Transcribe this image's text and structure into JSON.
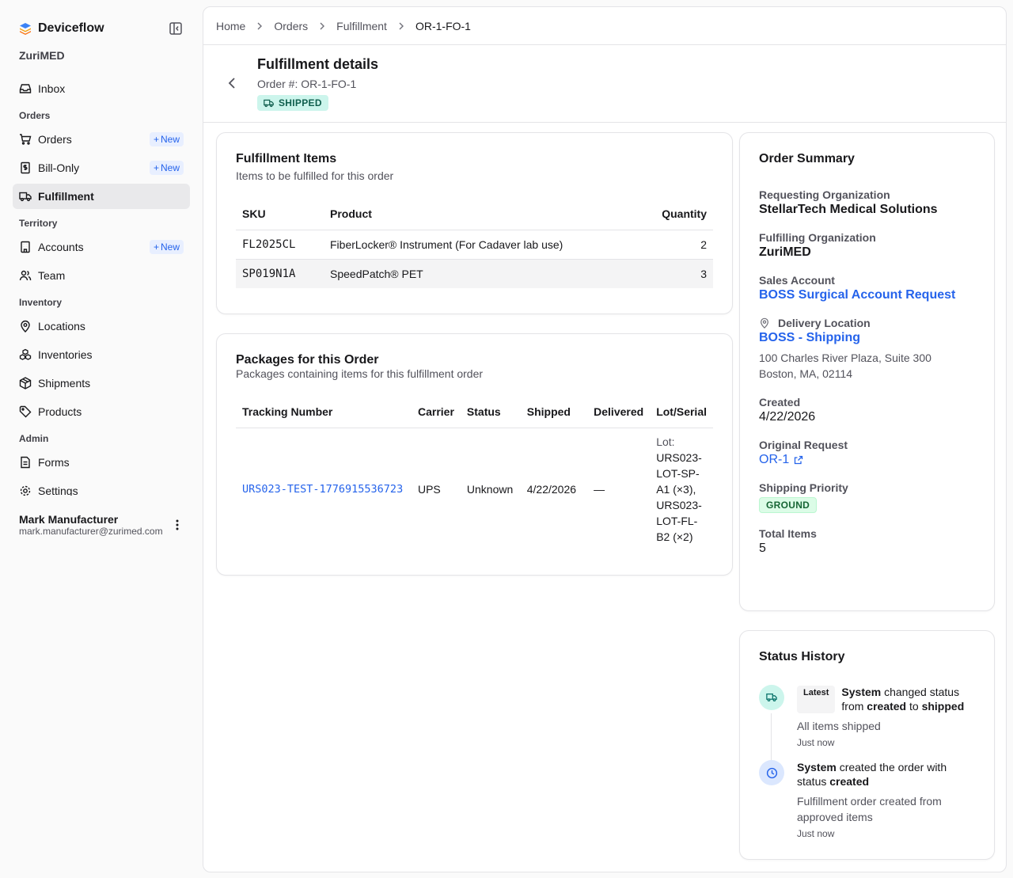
{
  "app": {
    "name": "Deviceflow",
    "org": "ZuriMED"
  },
  "sidebar": {
    "inbox": "Inbox",
    "sections": {
      "orders": "Orders",
      "territory": "Territory",
      "inventory": "Inventory",
      "admin": "Admin"
    },
    "new_label": "New",
    "items": {
      "orders": "Orders",
      "bill_only": "Bill-Only",
      "fulfillment": "Fulfillment",
      "accounts": "Accounts",
      "team": "Team",
      "locations": "Locations",
      "inventories": "Inventories",
      "shipments": "Shipments",
      "products": "Products",
      "forms": "Forms",
      "settings": "Settings"
    },
    "user": {
      "name": "Mark Manufacturer",
      "email": "mark.manufacturer@zurimed.com"
    }
  },
  "breadcrumb": [
    "Home",
    "Orders",
    "Fulfillment",
    "OR-1-FO-1"
  ],
  "header": {
    "title": "Fulfillment details",
    "subtitle": "Order #: OR-1-FO-1",
    "status": "SHIPPED"
  },
  "items_card": {
    "title": "Fulfillment Items",
    "description": "Items to be fulfilled for this order",
    "columns": [
      "SKU",
      "Product",
      "Quantity"
    ],
    "rows": [
      {
        "sku": "FL2025CL",
        "product": "FiberLocker® Instrument (For Cadaver lab use)",
        "qty": "2"
      },
      {
        "sku": "SP019N1A",
        "product": "SpeedPatch® PET",
        "qty": "3"
      }
    ]
  },
  "packages_card": {
    "title": "Packages for this Order",
    "description": "Packages containing items for this fulfillment order",
    "columns": [
      "Tracking Number",
      "Carrier",
      "Status",
      "Shipped",
      "Delivered",
      "Lot/Serial"
    ],
    "rows": [
      {
        "tracking": "URS023-TEST-1776915536723",
        "carrier": "UPS",
        "status": "Unknown",
        "shipped": "4/22/2026",
        "delivered": "—",
        "lot_lines": [
          "Lot:",
          "URS023-",
          "LOT-SP-",
          "A1 (×3),",
          "URS023-",
          "LOT-FL-",
          "B2 (×2)"
        ]
      }
    ]
  },
  "summary": {
    "title": "Order Summary",
    "requesting_label": "Requesting Organization",
    "requesting_value": "StellarTech Medical Solutions",
    "fulfilling_label": "Fulfilling Organization",
    "fulfilling_value": "ZuriMED",
    "sales_label": "Sales Account",
    "sales_value": "BOSS Surgical Account Request",
    "delivery_label": "Delivery Location",
    "delivery_value": "BOSS - Shipping",
    "address_line1": "100 Charles River Plaza, Suite 300",
    "address_line2": "Boston, MA, 02114",
    "created_label": "Created",
    "created_value": "4/22/2026",
    "original_label": "Original Request",
    "original_value": "OR-1",
    "priority_label": "Shipping Priority",
    "priority_value": "GROUND",
    "total_label": "Total Items",
    "total_value": "5"
  },
  "history": {
    "title": "Status History",
    "latest_label": "Latest",
    "entries": [
      {
        "actor": "System",
        "text1": " changed status from ",
        "from": "created",
        "text2": " to ",
        "to": "shipped",
        "note": "All items shipped",
        "time": "Just now"
      },
      {
        "actor": "System",
        "text1": " created the order with status ",
        "status": "created",
        "note": "Fulfillment order created from approved items",
        "time": "Just now"
      }
    ]
  },
  "colors": {
    "accent": "#2563eb",
    "shipped_bg": "#ccf5ec",
    "ground_bg": "#dcfce7"
  }
}
